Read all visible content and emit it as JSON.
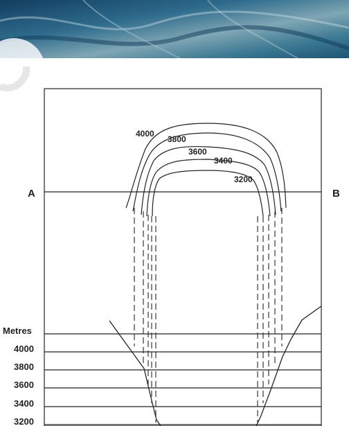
{
  "diagram": {
    "map": {
      "contours": [
        {
          "label": "4000",
          "value": 4000
        },
        {
          "label": "3800",
          "value": 3800
        },
        {
          "label": "3600",
          "value": 3600
        },
        {
          "label": "3400",
          "value": 3400
        },
        {
          "label": "3200",
          "value": 3200
        }
      ],
      "section_start_label": "A",
      "section_end_label": "B"
    },
    "profile": {
      "unit_label": "Metres",
      "levels": [
        {
          "label": "4000"
        },
        {
          "label": "3800"
        },
        {
          "label": "3600"
        },
        {
          "label": "3400"
        },
        {
          "label": "3200"
        }
      ]
    }
  },
  "colors": {
    "line": "#222222",
    "photo_dark": "#1b4f74",
    "photo_light": "#8fb3c4"
  }
}
